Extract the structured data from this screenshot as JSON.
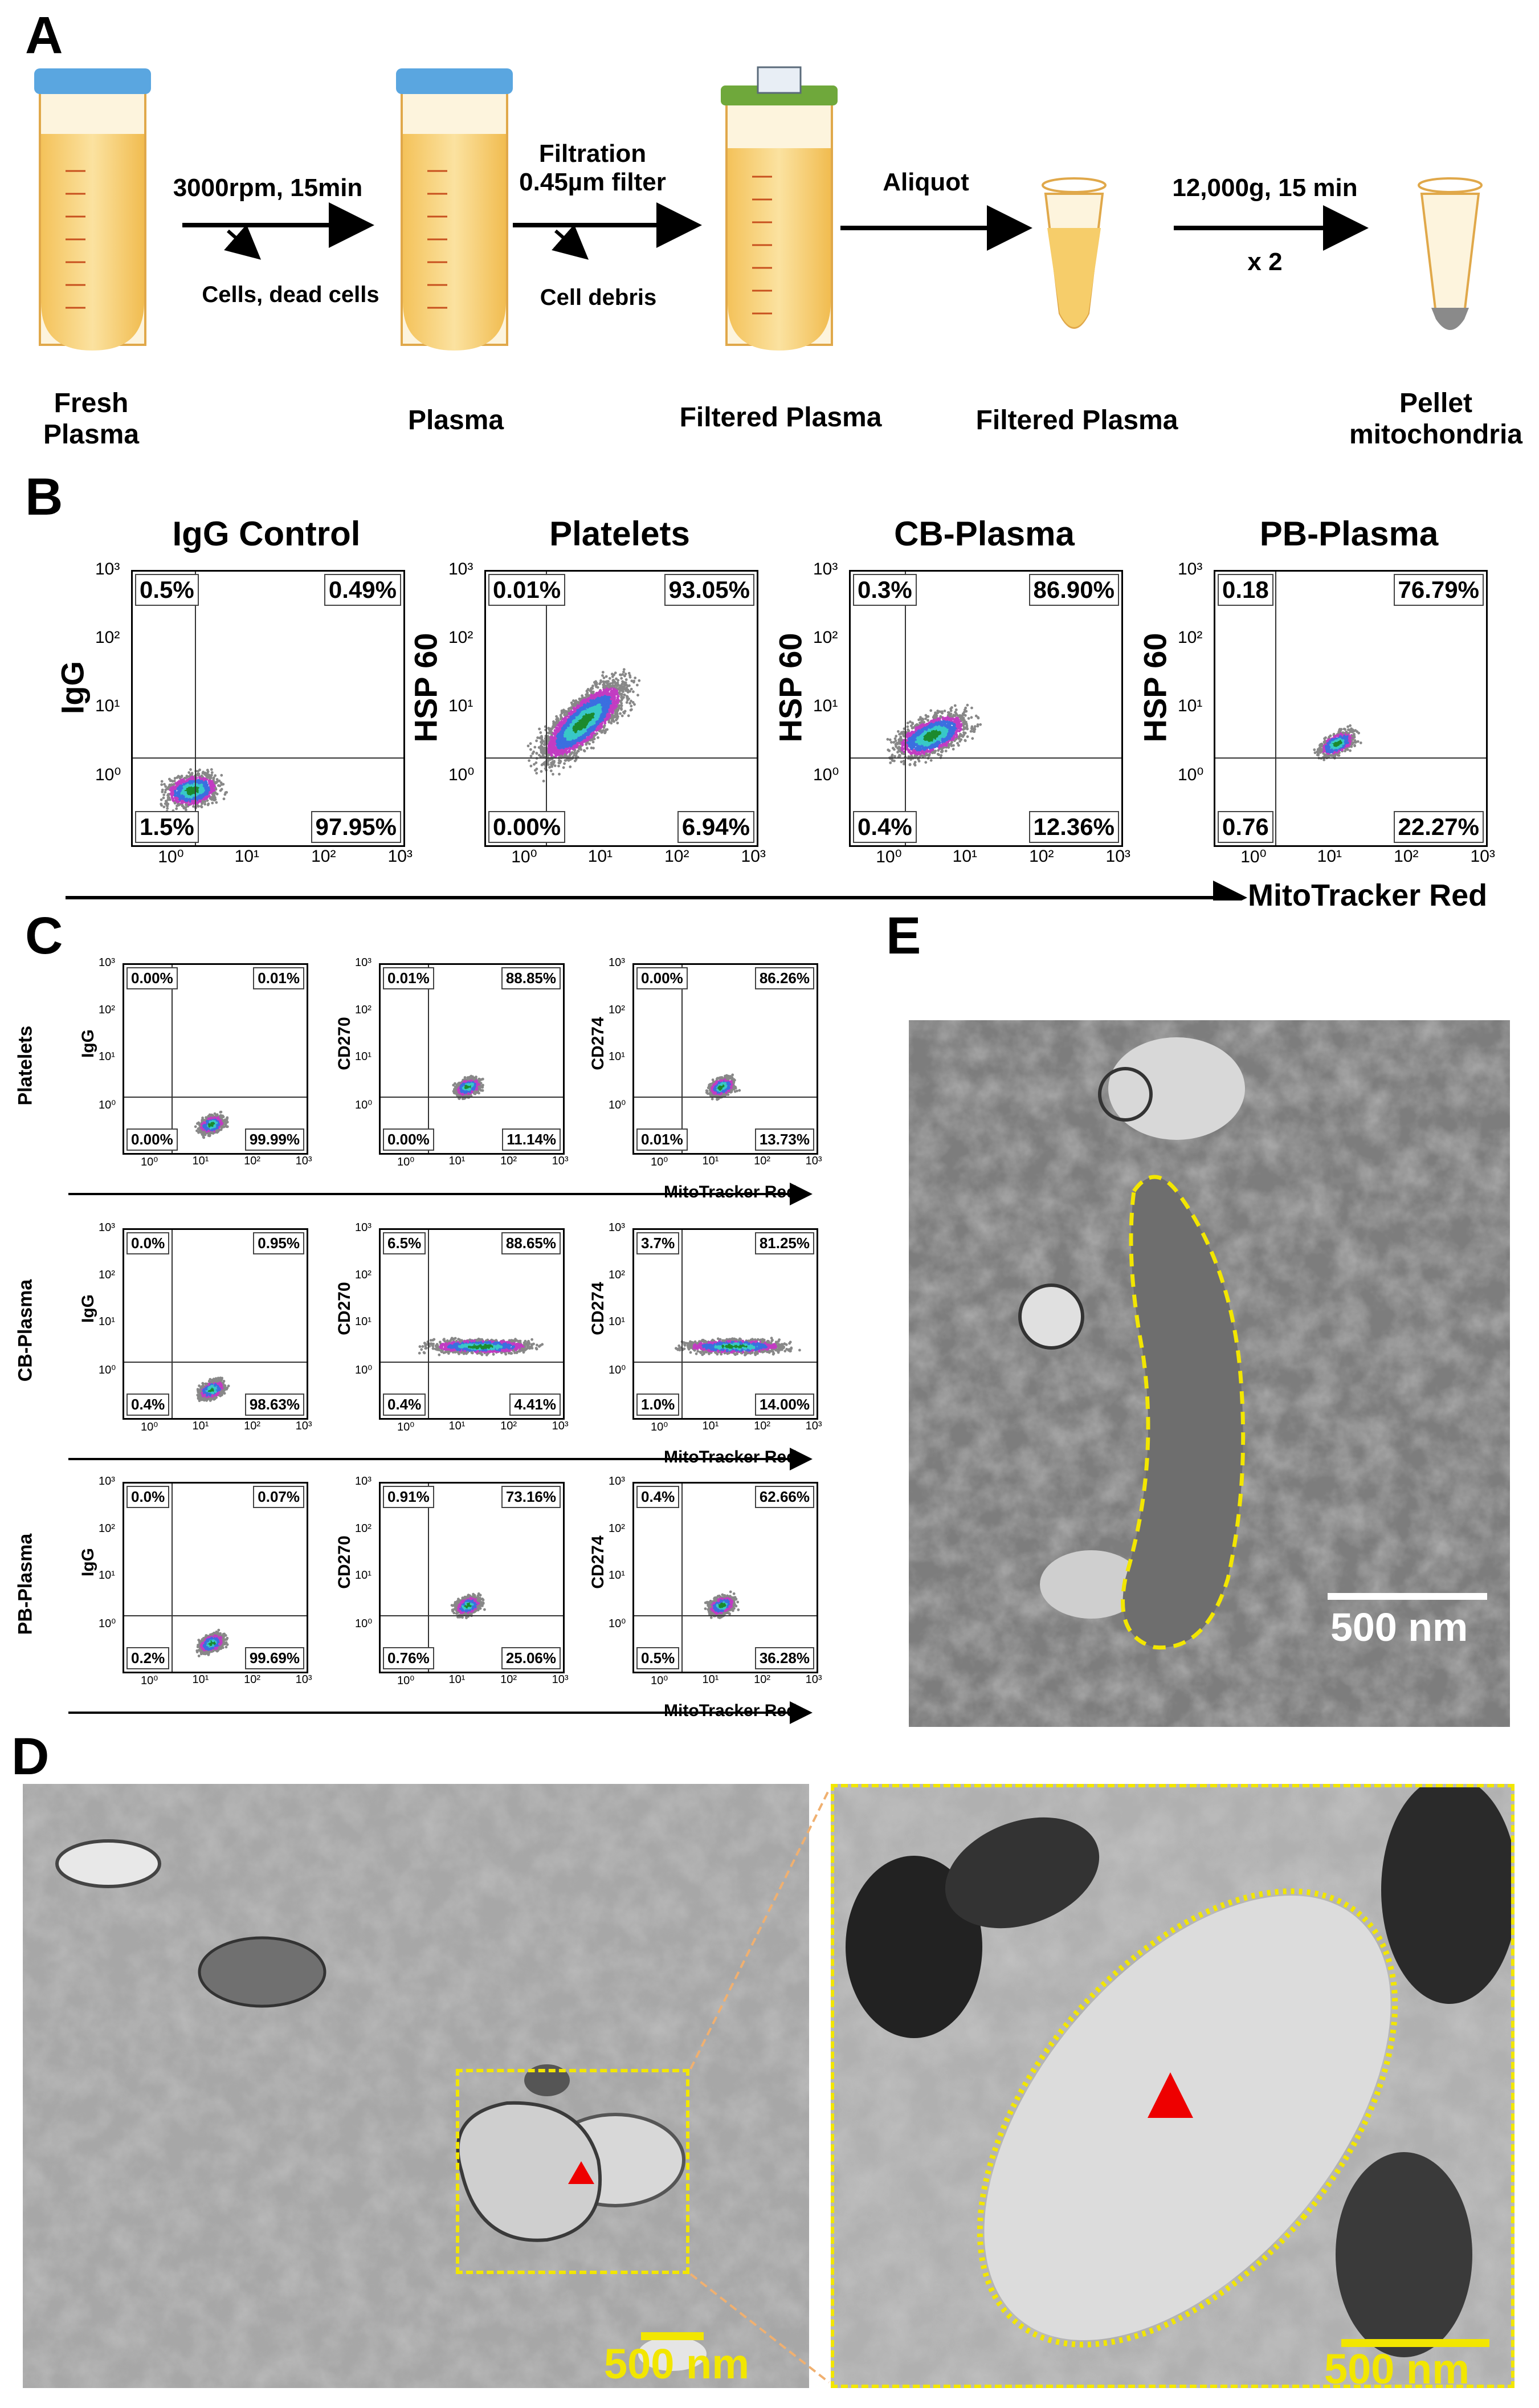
{
  "panels": {
    "A": "A",
    "B": "B",
    "C": "C",
    "D": "D",
    "E": "E"
  },
  "panelA": {
    "steps": [
      "Fresh\nPlasma",
      "Plasma",
      "Filtered Plasma",
      "Filtered Plasma",
      "Pellet\nmitochondria"
    ],
    "arrows": [
      {
        "top": "3000rpm, 15min",
        "bottom": "Cells, dead cells"
      },
      {
        "top": "Filtration\n0.45µm filter",
        "bottom": "Cell debris"
      },
      {
        "top": "Aliquot",
        "bottom": ""
      },
      {
        "top": "12,000g, 15 min",
        "bottom": "x 2"
      }
    ]
  },
  "panelB": {
    "x_axis_label": "MitoTracker Red",
    "plots": [
      {
        "title": "IgG Control",
        "ylabel": "IgG",
        "q": [
          "0.5%",
          "0.49%",
          "1.5%",
          "97.95%"
        ]
      },
      {
        "title": "Platelets",
        "ylabel": "HSP 60",
        "q": [
          "0.01%",
          "93.05%",
          "0.00%",
          "6.94%"
        ]
      },
      {
        "title": "CB-Plasma",
        "ylabel": "HSP 60",
        "q": [
          "0.3%",
          "86.90%",
          "0.4%",
          "12.36%"
        ]
      },
      {
        "title": "PB-Plasma",
        "ylabel": "HSP 60",
        "q": [
          "0.18",
          "76.79%",
          "0.76",
          "22.27%"
        ]
      }
    ],
    "ticks": [
      "10⁰",
      "10¹",
      "10²",
      "10³"
    ]
  },
  "panelC": {
    "x_axis_label": "MitoTracker Red",
    "rows": [
      {
        "label": "Platelets",
        "plots": [
          {
            "ylabel": "IgG",
            "q": [
              "0.00%",
              "0.01%",
              "0.00%",
              "99.99%"
            ]
          },
          {
            "ylabel": "CD270",
            "q": [
              "0.01%",
              "88.85%",
              "0.00%",
              "11.14%"
            ]
          },
          {
            "ylabel": "CD274",
            "q": [
              "0.00%",
              "86.26%",
              "0.01%",
              "13.73%"
            ]
          }
        ]
      },
      {
        "label": "CB-Plasma",
        "plots": [
          {
            "ylabel": "IgG",
            "q": [
              "0.0%",
              "0.95%",
              "0.4%",
              "98.63%"
            ]
          },
          {
            "ylabel": "CD270",
            "q": [
              "6.5%",
              "88.65%",
              "0.4%",
              "4.41%"
            ]
          },
          {
            "ylabel": "CD274",
            "q": [
              "3.7%",
              "81.25%",
              "1.0%",
              "14.00%"
            ]
          }
        ]
      },
      {
        "label": "PB-Plasma",
        "plots": [
          {
            "ylabel": "IgG",
            "q": [
              "0.0%",
              "0.07%",
              "0.2%",
              "99.69%"
            ]
          },
          {
            "ylabel": "CD270",
            "q": [
              "0.91%",
              "73.16%",
              "0.76%",
              "25.06%"
            ]
          },
          {
            "ylabel": "CD274",
            "q": [
              "0.4%",
              "62.66%",
              "0.5%",
              "36.28%"
            ]
          }
        ]
      }
    ]
  },
  "panelD": {
    "scale_left": "500 nm",
    "scale_right": "500 nm"
  },
  "panelE": {
    "scale": "500 nm"
  },
  "colors": {
    "tube_fill": "#f6cd6a",
    "tube_cap": "#5aa6e0",
    "filter": "#6fa83b",
    "scale_yellow": "#f2e600",
    "outline_yellow": "#f2e600",
    "arrowhead_red": "#ee0000"
  }
}
